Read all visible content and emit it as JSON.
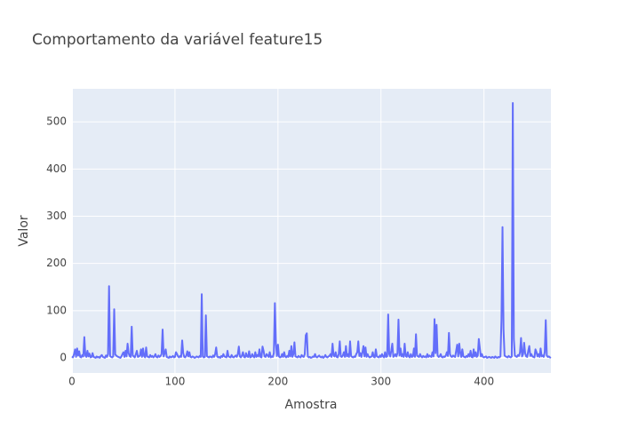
{
  "chart_data": {
    "type": "line",
    "title": "Comportamento da variável feature15",
    "xlabel": "Amostra",
    "ylabel": "Valor",
    "xlim": [
      0,
      465
    ],
    "ylim": [
      -32,
      570
    ],
    "xticks": [
      0,
      100,
      200,
      300,
      400
    ],
    "yticks": [
      0,
      100,
      200,
      300,
      400,
      500
    ],
    "grid": true,
    "background": "#e5ecf6",
    "series": [
      {
        "color": "#636efa",
        "values": [
          3,
          1,
          8,
          18,
          2,
          20,
          5,
          14,
          2,
          1,
          6,
          3,
          44,
          5,
          2,
          15,
          3,
          9,
          1,
          2,
          10,
          2,
          1,
          0,
          3,
          1,
          2,
          0,
          4,
          6,
          2,
          1,
          0,
          5,
          2,
          8,
          152,
          4,
          2,
          1,
          3,
          103,
          7,
          5,
          3,
          2,
          1,
          0,
          3,
          8,
          12,
          2,
          15,
          3,
          30,
          10,
          4,
          2,
          66,
          5,
          3,
          1,
          8,
          15,
          2,
          3,
          5,
          18,
          2,
          20,
          4,
          1,
          22,
          3,
          2,
          1,
          6,
          2,
          4,
          1,
          3,
          8,
          2,
          1,
          5,
          2,
          4,
          8,
          60,
          3,
          10,
          18,
          2,
          1,
          0,
          3,
          1,
          2,
          4,
          1,
          2,
          12,
          8,
          3,
          1,
          4,
          2,
          37,
          10,
          2,
          1,
          5,
          14,
          3,
          12,
          2,
          1,
          3,
          2,
          0,
          1,
          3,
          2,
          1,
          4,
          2,
          135,
          3,
          1,
          2,
          90,
          4,
          2,
          1,
          3,
          2,
          1,
          5,
          2,
          8,
          22,
          3,
          1,
          2,
          0,
          4,
          2,
          8,
          3,
          2,
          1,
          15,
          3,
          2,
          1,
          6,
          2,
          1,
          3,
          5,
          2,
          8,
          24,
          3,
          1,
          5,
          12,
          2,
          1,
          10,
          3,
          2,
          14,
          1,
          2,
          8,
          3,
          1,
          12,
          2,
          6,
          3,
          18,
          2,
          1,
          24,
          15,
          3,
          2,
          8,
          5,
          2,
          12,
          1,
          3,
          2,
          10,
          116,
          30,
          4,
          28,
          3,
          1,
          2,
          8,
          2,
          12,
          3,
          1,
          4,
          2,
          15,
          3,
          25,
          2,
          8,
          33,
          3,
          2,
          1,
          4,
          2,
          1,
          6,
          3,
          2,
          8,
          48,
          52,
          3,
          1,
          2,
          0,
          1,
          3,
          2,
          8,
          2,
          1,
          3,
          5,
          2,
          1,
          3,
          0,
          2,
          6,
          2,
          1,
          3,
          4,
          8,
          2,
          30,
          5,
          3,
          12,
          2,
          1,
          8,
          35,
          3,
          2,
          5,
          12,
          2,
          25,
          3,
          8,
          2,
          35,
          4,
          2,
          1,
          3,
          2,
          8,
          12,
          35,
          4,
          10,
          2,
          12,
          25,
          3,
          22,
          2,
          8,
          3,
          1,
          2,
          3,
          12,
          2,
          1,
          18,
          3,
          2,
          1,
          5,
          2,
          8,
          3,
          1,
          12,
          2,
          3,
          92,
          8,
          3,
          15,
          30,
          2,
          4,
          8,
          3,
          10,
          81,
          5,
          20,
          3,
          8,
          2,
          30,
          4,
          2,
          12,
          3,
          1,
          8,
          2,
          3,
          20,
          2,
          50,
          5,
          3,
          2,
          8,
          3,
          1,
          4,
          2,
          3,
          1,
          8,
          2,
          5,
          3,
          2,
          12,
          3,
          82,
          10,
          70,
          5,
          2,
          3,
          8,
          2,
          1,
          3,
          2,
          5,
          12,
          4,
          53,
          8,
          3,
          2,
          5,
          3,
          2,
          15,
          28,
          3,
          30,
          10,
          2,
          18,
          3,
          2,
          1,
          4,
          2,
          8,
          3,
          15,
          2,
          1,
          18,
          3,
          12,
          2,
          5,
          40,
          20,
          3,
          8,
          2,
          1,
          2,
          3,
          0,
          1,
          2,
          1,
          0,
          2,
          1,
          0,
          3,
          1,
          0,
          2,
          1,
          3,
          80,
          277,
          60,
          5,
          3,
          2,
          1,
          4,
          2,
          1,
          3,
          540,
          40,
          5,
          3,
          2,
          6,
          4,
          12,
          42,
          3,
          8,
          32,
          10,
          3,
          2,
          15,
          25,
          4,
          8,
          3,
          2,
          1,
          18,
          12,
          3,
          8,
          2,
          20,
          3,
          5,
          2,
          12,
          80,
          5,
          2,
          3,
          1,
          0
        ]
      }
    ]
  }
}
